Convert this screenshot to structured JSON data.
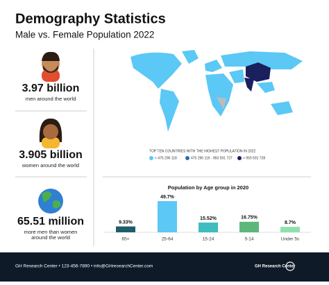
{
  "header": {
    "title": "Demography Statistics",
    "subtitle": "Male vs. Female Population 2022"
  },
  "stats": [
    {
      "value": "3.97 billion",
      "description": [
        "men around the world"
      ]
    },
    {
      "value": "3.905 billion",
      "description": [
        "women around the world"
      ]
    },
    {
      "value": "65.51 million",
      "description": [
        "more men than women",
        "around the world"
      ]
    }
  ],
  "map": {
    "legend_title": "TOP TEN COUNTRIES WITH THE HIGHEST POPULATION IN 2022",
    "legend": [
      {
        "label": "< 475 296 118",
        "color": "#5bc8f5"
      },
      {
        "label": "475 296 119 - 950 591 727",
        "color": "#2e6da4"
      },
      {
        "label": "> 950 591 728",
        "color": "#1a1f5e"
      }
    ]
  },
  "chart_data": {
    "type": "bar",
    "title": "Population by Age group in 2020",
    "categories": [
      "65+",
      "25-64",
      "15-24",
      "5-14",
      "Under 5s"
    ],
    "values": [
      9.33,
      49.7,
      15.52,
      16.75,
      8.7
    ],
    "value_labels": [
      "9.33%",
      "49.7%",
      "15.52%",
      "16.75%",
      "8.7%"
    ],
    "colors": [
      "#1f5c6b",
      "#5bc8f5",
      "#3fbcc0",
      "#5cb87a",
      "#8fe0b0"
    ]
  },
  "footer": {
    "contact": "GH Research Center • 123-456-7890 • info@GHresearchCenter.com",
    "brand": "GH Research Center"
  }
}
